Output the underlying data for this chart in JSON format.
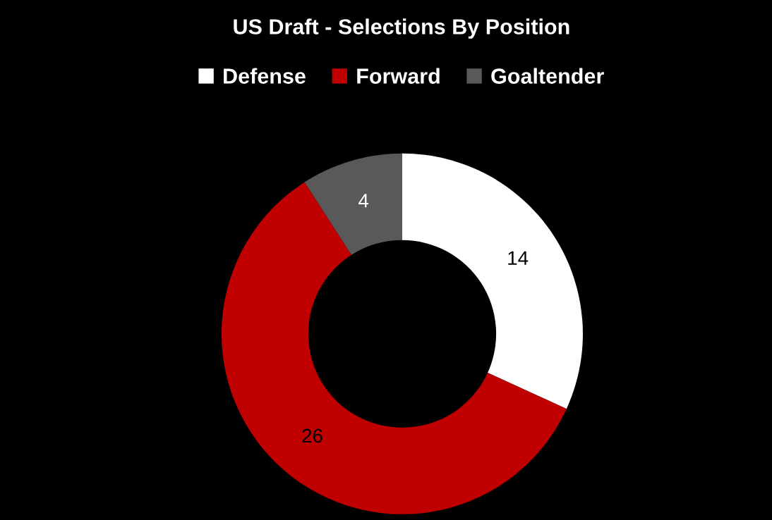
{
  "chart_data": {
    "type": "donut",
    "title": "US Draft - Selections By Position",
    "categories": [
      "Defense",
      "Forward",
      "Goaltender"
    ],
    "values": [
      14,
      26,
      4
    ],
    "colors": [
      "#ffffff",
      "#c00000",
      "#595959"
    ],
    "data_labels": true,
    "legend": "top"
  }
}
